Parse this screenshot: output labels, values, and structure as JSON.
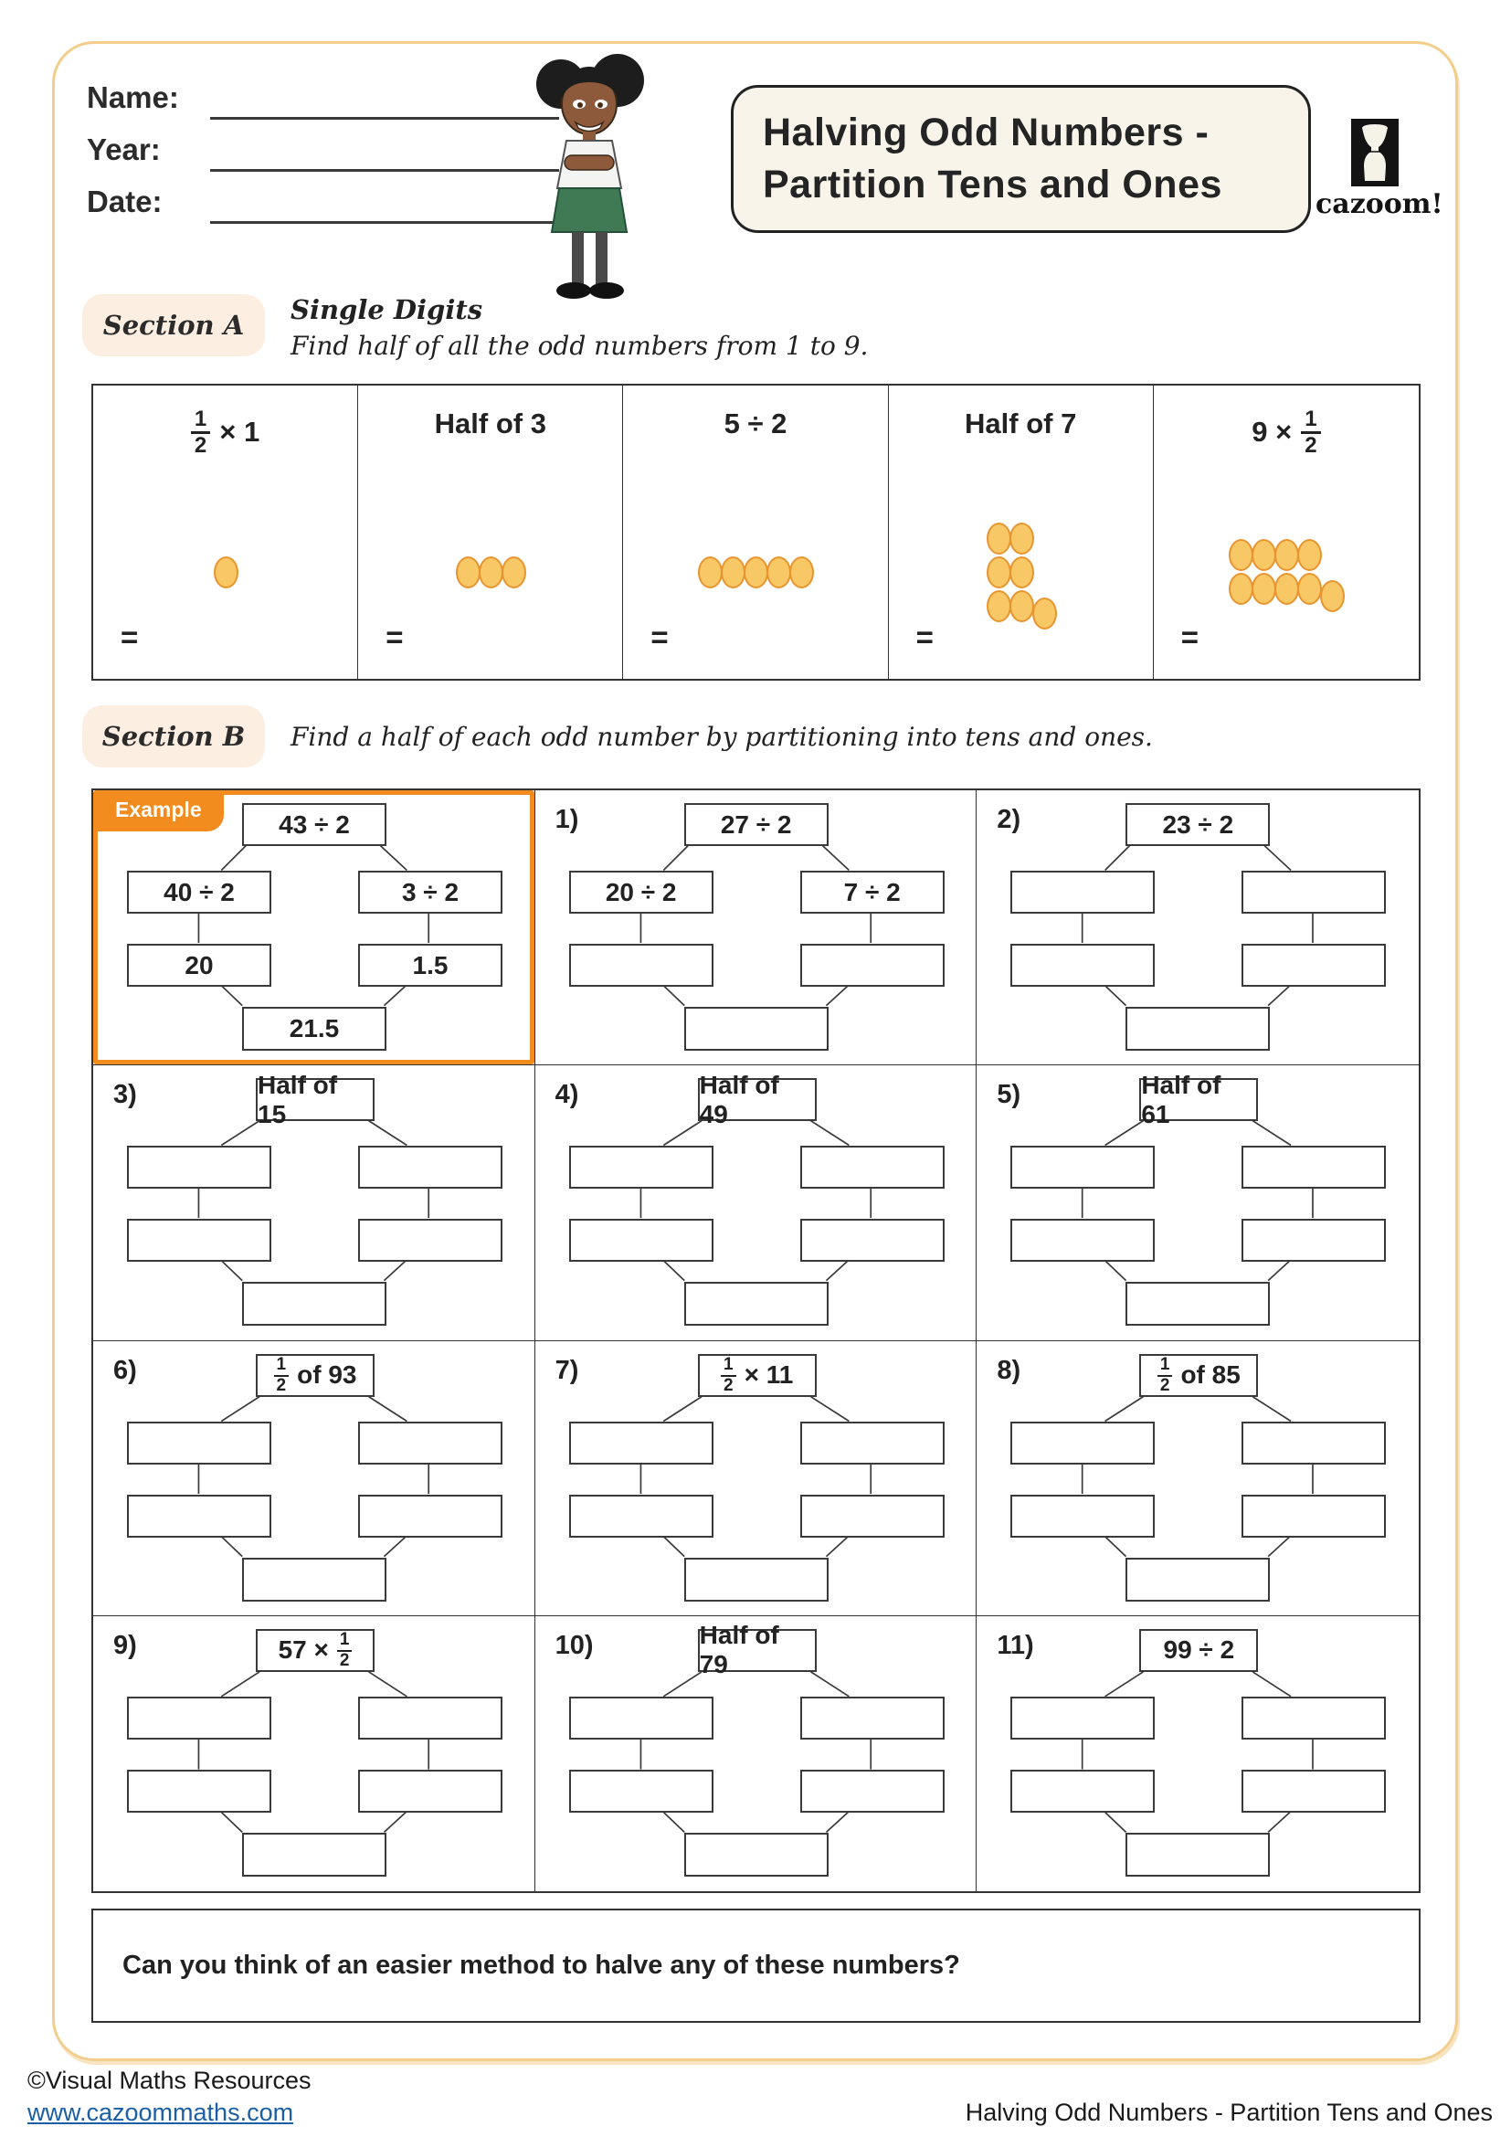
{
  "header": {
    "name_label": "Name:",
    "year_label": "Year:",
    "date_label": "Date:",
    "title_line1": "Halving Odd Numbers -",
    "title_line2": "Partition Tens and Ones",
    "logo_text": "cazoom!"
  },
  "section_a": {
    "label": "Section A",
    "heading": "Single Digits",
    "instruction": "Find half of all the odd numbers from 1 to 9.",
    "equals_sign": "=",
    "cells": [
      {
        "expr": [
          {
            "frac": [
              "1",
              "2"
            ]
          },
          {
            "text": "× 1"
          }
        ],
        "dot_rows": [
          [
            0
          ]
        ]
      },
      {
        "expr": [
          {
            "text": "Half of 3"
          }
        ],
        "dot_rows": [
          [
            0,
            0,
            0
          ]
        ]
      },
      {
        "expr": [
          {
            "text": "5 ÷ 2"
          }
        ],
        "dot_rows": [
          [
            0,
            0,
            0,
            0,
            0
          ]
        ]
      },
      {
        "expr": [
          {
            "text": "Half of 7"
          }
        ],
        "dot_rows": [
          [
            0,
            0
          ],
          [
            0,
            0
          ],
          [
            0,
            0,
            8
          ]
        ]
      },
      {
        "expr": [
          {
            "text": "9 ×"
          },
          {
            "frac": [
              "1",
              "2"
            ]
          }
        ],
        "dot_rows": [
          [
            0,
            0,
            0,
            0
          ],
          [
            0,
            0,
            0,
            0,
            8
          ]
        ]
      }
    ]
  },
  "section_b": {
    "label": "Section B",
    "instruction": "Find a half of each odd number by partitioning into tens and ones.",
    "example_tag": "Example",
    "cells": [
      {
        "tag": "example",
        "number": "",
        "top": [
          {
            "text": "43 ÷ 2"
          }
        ],
        "mid_left": [
          {
            "text": "40 ÷ 2"
          }
        ],
        "mid_right": [
          {
            "text": "3 ÷ 2"
          }
        ],
        "ans_left": [
          {
            "text": "20"
          }
        ],
        "ans_right": [
          {
            "text": "1.5"
          }
        ],
        "bottom": [
          {
            "text": "21.5"
          }
        ]
      },
      {
        "number": "1)",
        "top": [
          {
            "text": "27 ÷ 2"
          }
        ],
        "mid_left": [
          {
            "text": "20 ÷ 2"
          }
        ],
        "mid_right": [
          {
            "text": "7 ÷ 2"
          }
        ],
        "ans_left": [],
        "ans_right": [],
        "bottom": []
      },
      {
        "number": "2)",
        "top": [
          {
            "text": "23 ÷ 2"
          }
        ],
        "mid_left": [],
        "mid_right": [],
        "ans_left": [],
        "ans_right": [],
        "bottom": []
      },
      {
        "number": "3)",
        "top": [
          {
            "text": "Half of 15"
          }
        ],
        "mid_left": [],
        "mid_right": [],
        "ans_left": [],
        "ans_right": [],
        "bottom": []
      },
      {
        "number": "4)",
        "top": [
          {
            "text": "Half of 49"
          }
        ],
        "mid_left": [],
        "mid_right": [],
        "ans_left": [],
        "ans_right": [],
        "bottom": []
      },
      {
        "number": "5)",
        "top": [
          {
            "text": "Half of 61"
          }
        ],
        "mid_left": [],
        "mid_right": [],
        "ans_left": [],
        "ans_right": [],
        "bottom": []
      },
      {
        "number": "6)",
        "top": [
          {
            "frac": [
              "1",
              "2"
            ]
          },
          {
            "text": "of 93"
          }
        ],
        "mid_left": [],
        "mid_right": [],
        "ans_left": [],
        "ans_right": [],
        "bottom": []
      },
      {
        "number": "7)",
        "top": [
          {
            "frac": [
              "1",
              "2"
            ]
          },
          {
            "text": "× 11"
          }
        ],
        "mid_left": [],
        "mid_right": [],
        "ans_left": [],
        "ans_right": [],
        "bottom": []
      },
      {
        "number": "8)",
        "top": [
          {
            "frac": [
              "1",
              "2"
            ]
          },
          {
            "text": "of 85"
          }
        ],
        "mid_left": [],
        "mid_right": [],
        "ans_left": [],
        "ans_right": [],
        "bottom": []
      },
      {
        "number": "9)",
        "top": [
          {
            "text": "57 ×"
          },
          {
            "frac": [
              "1",
              "2"
            ]
          }
        ],
        "mid_left": [],
        "mid_right": [],
        "ans_left": [],
        "ans_right": [],
        "bottom": []
      },
      {
        "number": "10)",
        "top": [
          {
            "text": "Half of 79"
          }
        ],
        "mid_left": [],
        "mid_right": [],
        "ans_left": [],
        "ans_right": [],
        "bottom": []
      },
      {
        "number": "11)",
        "top": [
          {
            "text": "99 ÷ 2"
          }
        ],
        "mid_left": [],
        "mid_right": [],
        "ans_left": [],
        "ans_right": [],
        "bottom": []
      }
    ]
  },
  "question": "Can you think of an easier method to halve any of these numbers?",
  "footer": {
    "copyright": "©Visual Maths Resources",
    "link": "www.cazoommaths.com",
    "doc_title": "Halving Odd Numbers - Partition Tens and Ones"
  },
  "colors": {
    "accent_orange": "#F28C1E",
    "page_border": "#F2CE8C",
    "section_pill_bg": "#FCEEE1",
    "title_box_bg": "#F8F4E9",
    "dot_fill": "#F8C766",
    "dot_stroke": "#E8952F",
    "link_blue": "#1A5FA8",
    "ink": "#262626"
  }
}
